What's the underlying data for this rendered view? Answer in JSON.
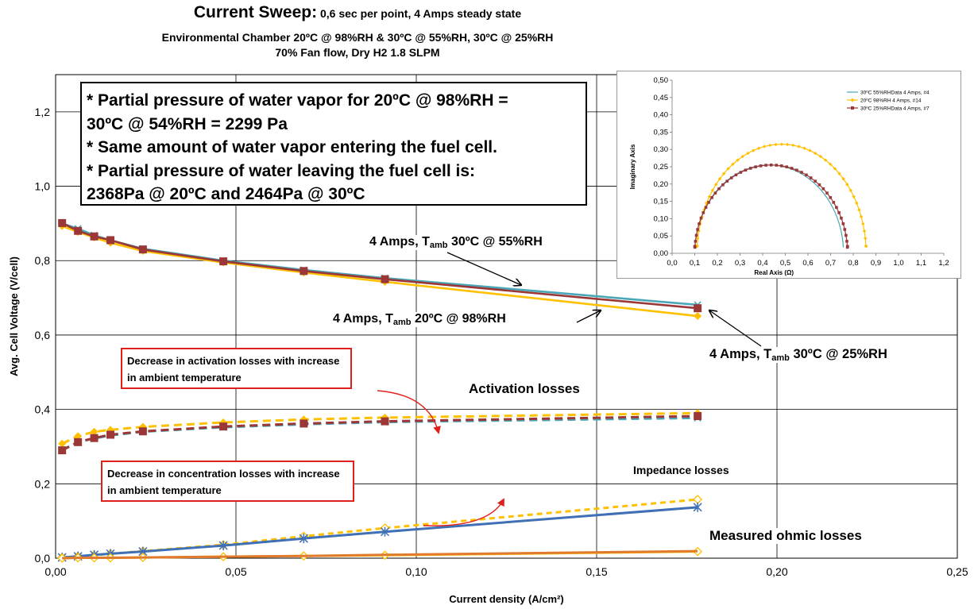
{
  "title": {
    "main": "Current Sweep:",
    "main_suffix": " 0,6 sec per point, 4 Amps steady state",
    "line2": "Environmental Chamber 20ºC @ 98%RH & 30ºC @ 55%RH, 30ºC @ 25%RH",
    "line3": "70% Fan flow, Dry H2 1.8 SLPM"
  },
  "note_box": {
    "line1": "* Partial pressure of water vapor for 20ºC @ 98%RH =",
    "line2": "30ºC @ 54%RH = 2299 Pa",
    "line3": "* Same amount of water vapor entering the fuel cell.",
    "line4": "* Partial pressure of water leaving the fuel cell is:",
    "line5": "2368Pa @ 20ºC and 2464Pa @ 30ºC"
  },
  "labels": {
    "series_55": {
      "prefix": "4 Amps, T",
      "sub": "amb",
      "suffix": " 30ºC @ 55%RH"
    },
    "series_98": {
      "prefix": "4 Amps, T",
      "sub": "amb",
      "suffix": " 20ºC @ 98%RH"
    },
    "series_25": {
      "prefix": "4 Amps, T",
      "sub": "amb",
      "suffix": " 30ºC @ 25%RH"
    },
    "activation_note": "Decrease in activation losses with increase in ambient temperature",
    "concentration_note": "Decrease in concentration losses with increase in ambient temperature",
    "activation_losses": "Activation losses",
    "impedance_losses": "Impedance losses",
    "ohmic_losses": "Measured ohmic losses"
  },
  "colors": {
    "rh55": "#4aa7b8",
    "rh98": "#ffc000",
    "rh25": "#9b3837",
    "impedance_blue": "#3f6fb5",
    "ohmic_orange": "#e07a2e",
    "arrow_red": "#e0201b",
    "grid": "#000000"
  },
  "chart_data": [
    {
      "type": "line",
      "xlabel": "Current density (A/cm²)",
      "ylabel": "Avg. Cell Voltage (V/cell)",
      "xlim": [
        0,
        0.25
      ],
      "ylim": [
        0,
        1.3
      ],
      "x_ticks": [
        "0,00",
        "0,05",
        "0,10",
        "0,15",
        "0,20",
        "0,25"
      ],
      "y_ticks": [
        "0,0",
        "0,2",
        "0,4",
        "0,6",
        "0,8",
        "1,0",
        "1,2"
      ],
      "x_tick_values": [
        0,
        0.05,
        0.1,
        0.15,
        0.2,
        0.25
      ],
      "y_tick_values": [
        0,
        0.2,
        0.4,
        0.6,
        0.8,
        1.0,
        1.2
      ],
      "grid": true,
      "x": [
        0.0018,
        0.0062,
        0.0107,
        0.0152,
        0.0242,
        0.0465,
        0.0688,
        0.0913,
        0.178
      ],
      "series": [
        {
          "group": "voltage",
          "color": "#4aa7b8",
          "dash": "",
          "marker": "x",
          "values": [
            0.9,
            0.886,
            0.868,
            0.855,
            0.832,
            0.8,
            0.775,
            0.753,
            0.681
          ]
        },
        {
          "group": "voltage",
          "color": "#ffc000",
          "dash": "",
          "marker": "diamond",
          "values": [
            0.893,
            0.877,
            0.862,
            0.848,
            0.826,
            0.795,
            0.768,
            0.743,
            0.651
          ]
        },
        {
          "group": "voltage",
          "color": "#9b3837",
          "dash": "",
          "marker": "square",
          "values": [
            0.901,
            0.88,
            0.865,
            0.855,
            0.83,
            0.798,
            0.772,
            0.75,
            0.672
          ]
        },
        {
          "group": "activation",
          "color": "#ffc000",
          "dash": "10,6",
          "marker": "diamond",
          "values": [
            0.308,
            0.328,
            0.34,
            0.345,
            0.353,
            0.365,
            0.373,
            0.378,
            0.39
          ]
        },
        {
          "group": "activation",
          "color": "#4aa7b8",
          "dash": "10,6",
          "marker": "x",
          "values": [
            0.291,
            0.312,
            0.322,
            0.33,
            0.34,
            0.352,
            0.36,
            0.366,
            0.377
          ]
        },
        {
          "group": "activation",
          "color": "#9b3837",
          "dash": "10,6",
          "marker": "square",
          "values": [
            0.29,
            0.312,
            0.323,
            0.332,
            0.341,
            0.354,
            0.362,
            0.368,
            0.382
          ]
        },
        {
          "group": "impedance",
          "color": "#ffc000",
          "dash": "7,5",
          "marker": "diamond-open",
          "values": [
            0.002,
            0.005,
            0.008,
            0.012,
            0.019,
            0.036,
            0.059,
            0.081,
            0.158
          ]
        },
        {
          "group": "impedance",
          "color": "#3f6fb5",
          "dash": "",
          "marker": "asterisk",
          "values": [
            0.002,
            0.005,
            0.009,
            0.012,
            0.018,
            0.034,
            0.053,
            0.071,
            0.137
          ]
        },
        {
          "group": "ohmic",
          "color": "#ffc000",
          "dash": "",
          "marker": "diamond-open",
          "values": [
            0.0,
            0.001,
            0.001,
            0.001,
            0.002,
            0.004,
            0.006,
            0.008,
            0.018
          ]
        },
        {
          "group": "ohmic",
          "color": "#e07a2e",
          "dash": "",
          "marker": "",
          "values": [
            0.0,
            0.001,
            0.001,
            0.001,
            0.002,
            0.004,
            0.006,
            0.009,
            0.019
          ]
        }
      ]
    },
    {
      "type": "scatter",
      "name": "inset-nyquist",
      "xlabel": "Real Axis (Ω)",
      "ylabel": "Imaginary Axis",
      "xlim": [
        0,
        1.2
      ],
      "ylim": [
        0,
        0.5
      ],
      "x_ticks": [
        "0,0",
        "0,1",
        "0,2",
        "0,3",
        "0,4",
        "0,5",
        "0,6",
        "0,7",
        "0,8",
        "0,9",
        "1,0",
        "1,1",
        "1,2"
      ],
      "y_ticks": [
        "0,00",
        "0,05",
        "0,10",
        "0,15",
        "0,20",
        "0,25",
        "0,30",
        "0,35",
        "0,40",
        "0,45",
        "0,50"
      ],
      "grid": false,
      "legend_position": "top-right",
      "series": [
        {
          "name": "30ºC 55%RHData 4 Amps, #4",
          "color": "#4aa7b8",
          "marker": "line",
          "x_start": 0.1,
          "x_end": 0.757,
          "peak": 0.255
        },
        {
          "name": "20ºC 98%RH 4 Amps, #14",
          "color": "#ffc000",
          "marker": "diamond",
          "x_start": 0.11,
          "x_end": 0.857,
          "peak": 0.315
        },
        {
          "name": "30ºC 25%RHData 4 Amps, #7",
          "color": "#9b3837",
          "marker": "square",
          "x_start": 0.1,
          "x_end": 0.775,
          "peak": 0.255
        }
      ]
    }
  ]
}
